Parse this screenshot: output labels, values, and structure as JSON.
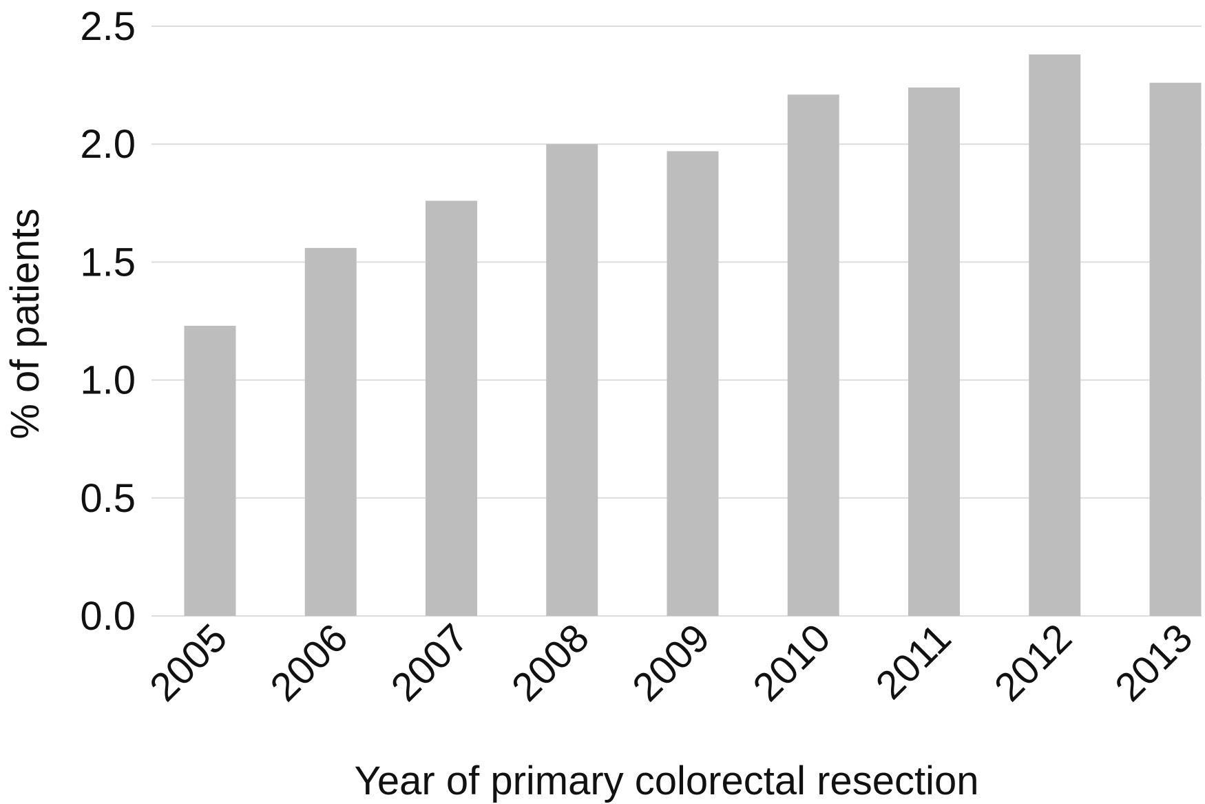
{
  "chart_data": {
    "type": "bar",
    "categories": [
      "2005",
      "2006",
      "2007",
      "2008",
      "2009",
      "2010",
      "2011",
      "2012",
      "2013"
    ],
    "values": [
      1.23,
      1.56,
      1.76,
      2.0,
      1.97,
      2.21,
      2.24,
      2.38,
      2.26
    ],
    "xlabel": "Year of primary colorectal resection",
    "ylabel": "% of patients",
    "ylim": [
      0,
      2.5
    ],
    "yticks": [
      "0.0",
      "0.5",
      "1.0",
      "1.5",
      "2.0",
      "2.5"
    ],
    "grid": true,
    "bar_color": "#bdbdbd",
    "grid_color": "#dcdcdc"
  }
}
